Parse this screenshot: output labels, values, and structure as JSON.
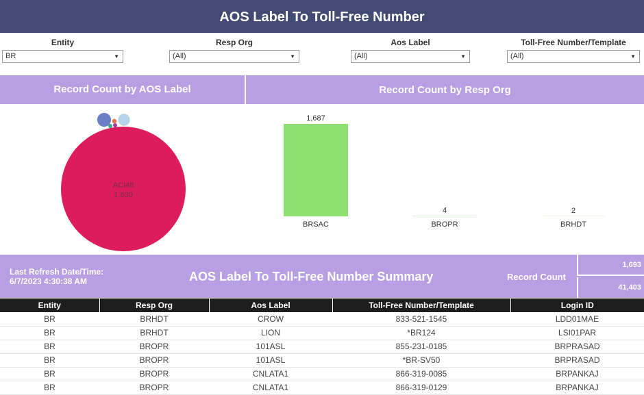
{
  "header": {
    "title": "AOS Label To Toll-Free Number"
  },
  "filters": [
    {
      "label": "Entity",
      "value": "BR"
    },
    {
      "label": "Resp Org",
      "value": "(All)"
    },
    {
      "label": "Aos Label",
      "value": "(All)"
    },
    {
      "label": "Toll-Free Number/Template",
      "value": "(All)"
    }
  ],
  "panels": {
    "aos_chart_title": "Record Count by AOS Label",
    "resp_chart_title": "Record Count by Resp Org"
  },
  "chart_data": [
    {
      "type": "bubble",
      "title": "Record Count by AOS Label",
      "bubbles": [
        {
          "name": "ACI48",
          "value": 1630,
          "value_label": "1,630",
          "color": "#dc1c5c"
        },
        {
          "name": "",
          "value": 20,
          "color": "#6b7fc4"
        },
        {
          "name": "",
          "value": 15,
          "color": "#b8d4e8"
        },
        {
          "name": "",
          "value": 2,
          "color": "#e9704d"
        },
        {
          "name": "",
          "value": 1,
          "color": "#9b3fa6"
        },
        {
          "name": "",
          "value": 1,
          "color": "#3aa68a"
        }
      ]
    },
    {
      "type": "bar",
      "title": "Record Count by Resp Org",
      "categories": [
        "BRSAC",
        "BROPR",
        "BRHDT"
      ],
      "values": [
        1687,
        4,
        2
      ],
      "value_labels": [
        "1,687",
        "4",
        "2"
      ],
      "color": "#8ce070",
      "ylim": [
        0,
        1687
      ]
    }
  ],
  "summary": {
    "refresh_label": "Last Refresh Date/Time:",
    "refresh_value": "6/7/2023 4:30:38 AM",
    "title": "AOS Label To Toll-Free Number Summary",
    "record_count_label": "Record Count",
    "count1": "1,693",
    "count2": "41,403"
  },
  "table": {
    "columns": [
      "Entity",
      "Resp Org",
      "Aos Label",
      "Toll-Free Number/Template",
      "Login ID"
    ],
    "rows": [
      [
        "BR",
        "BRHDT",
        "CROW",
        "833-521-1545",
        "LDD01MAE"
      ],
      [
        "BR",
        "BRHDT",
        "LION",
        "*BR124",
        "LSI01PAR"
      ],
      [
        "BR",
        "BROPR",
        "101ASL",
        "855-231-0185",
        "BRPRASAD"
      ],
      [
        "BR",
        "BROPR",
        "101ASL",
        "*BR-SV50",
        "BRPRASAD"
      ],
      [
        "BR",
        "BROPR",
        "CNLATA1",
        "866-319-0085",
        "BRPANKAJ"
      ],
      [
        "BR",
        "BROPR",
        "CNLATA1",
        "866-319-0129",
        "BRPANKAJ"
      ]
    ]
  }
}
